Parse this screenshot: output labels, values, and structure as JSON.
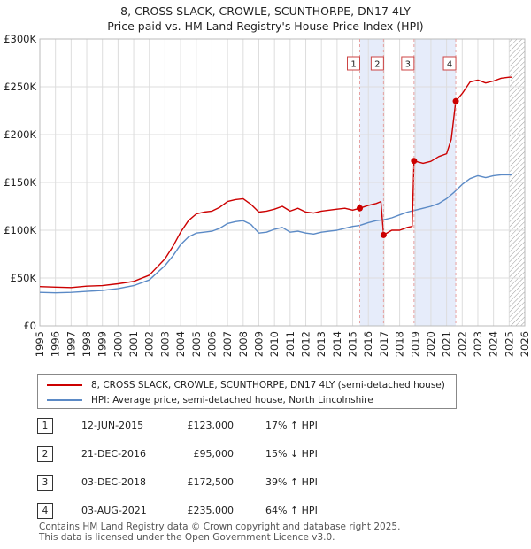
{
  "title_line1": "8, CROSS SLACK, CROWLE, SCUNTHORPE, DN17 4LY",
  "title_line2": "Price paid vs. HM Land Registry's House Price Index (HPI)",
  "colors": {
    "property_line": "#cc0000",
    "hpi_line": "#5b8ac6",
    "shade": "#e6ecfa",
    "marker_line": "#e6a0a0",
    "grid": "#dddddd",
    "hatch": "#999999"
  },
  "chart_data": {
    "type": "line",
    "title": "8, CROSS SLACK, CROWLE, SCUNTHORPE, DN17 4LY — Price paid vs. HM Land Registry's House Price Index (HPI)",
    "xlabel": "",
    "ylabel": "",
    "xlim": [
      1995,
      2026
    ],
    "ylim": [
      0,
      300000
    ],
    "grid": true,
    "x_ticks": [
      "1995",
      "1996",
      "1997",
      "1998",
      "1999",
      "2000",
      "2001",
      "2002",
      "2003",
      "2004",
      "2005",
      "2006",
      "2007",
      "2008",
      "2009",
      "2010",
      "2011",
      "2012",
      "2013",
      "2014",
      "2015",
      "2016",
      "2017",
      "2018",
      "2019",
      "2020",
      "2021",
      "2022",
      "2023",
      "2024",
      "2025",
      "2026"
    ],
    "y_ticks": [
      {
        "value": 0,
        "label": "£0"
      },
      {
        "value": 50000,
        "label": "£50K"
      },
      {
        "value": 100000,
        "label": "£100K"
      },
      {
        "value": 150000,
        "label": "£150K"
      },
      {
        "value": 200000,
        "label": "£200K"
      },
      {
        "value": 250000,
        "label": "£250K"
      },
      {
        "value": 300000,
        "label": "£300K"
      }
    ],
    "series": [
      {
        "name": "8, CROSS SLACK, CROWLE, SCUNTHORPE, DN17 4LY (semi-detached house)",
        "color": "#cc0000",
        "points": [
          [
            1995.0,
            41000
          ],
          [
            1996.0,
            40500
          ],
          [
            1997.0,
            40000
          ],
          [
            1998.0,
            41500
          ],
          [
            1999.0,
            42000
          ],
          [
            2000.0,
            44000
          ],
          [
            2001.0,
            46500
          ],
          [
            2002.0,
            53000
          ],
          [
            2003.0,
            70000
          ],
          [
            2003.5,
            83000
          ],
          [
            2004.0,
            98000
          ],
          [
            2004.5,
            110000
          ],
          [
            2005.0,
            117000
          ],
          [
            2005.5,
            119000
          ],
          [
            2006.0,
            120000
          ],
          [
            2006.5,
            124000
          ],
          [
            2007.0,
            130000
          ],
          [
            2007.5,
            132000
          ],
          [
            2008.0,
            133000
          ],
          [
            2008.5,
            127000
          ],
          [
            2009.0,
            119000
          ],
          [
            2009.5,
            120000
          ],
          [
            2010.0,
            122000
          ],
          [
            2010.5,
            125000
          ],
          [
            2011.0,
            120000
          ],
          [
            2011.5,
            123000
          ],
          [
            2012.0,
            119000
          ],
          [
            2012.5,
            118000
          ],
          [
            2013.0,
            120000
          ],
          [
            2013.5,
            121000
          ],
          [
            2014.0,
            122000
          ],
          [
            2014.5,
            123000
          ],
          [
            2015.0,
            121000
          ],
          [
            2015.45,
            123000
          ],
          [
            2016.0,
            126000
          ],
          [
            2016.5,
            128000
          ],
          [
            2016.8,
            130000
          ],
          [
            2016.97,
            95000
          ],
          [
            2017.5,
            100000
          ],
          [
            2018.0,
            100000
          ],
          [
            2018.5,
            103000
          ],
          [
            2018.8,
            104000
          ],
          [
            2018.92,
            172500
          ],
          [
            2019.5,
            170000
          ],
          [
            2020.0,
            172000
          ],
          [
            2020.5,
            177000
          ],
          [
            2021.0,
            180000
          ],
          [
            2021.3,
            195000
          ],
          [
            2021.59,
            235000
          ],
          [
            2022.0,
            243000
          ],
          [
            2022.5,
            255000
          ],
          [
            2023.0,
            257000
          ],
          [
            2023.5,
            254000
          ],
          [
            2024.0,
            256000
          ],
          [
            2024.5,
            259000
          ],
          [
            2025.0,
            260000
          ],
          [
            2025.2,
            260000
          ]
        ]
      },
      {
        "name": "HPI: Average price, semi-detached house, North Lincolnshire",
        "color": "#5b8ac6",
        "points": [
          [
            1995.0,
            35000
          ],
          [
            1996.0,
            34500
          ],
          [
            1997.0,
            35000
          ],
          [
            1998.0,
            36000
          ],
          [
            1999.0,
            37000
          ],
          [
            2000.0,
            39000
          ],
          [
            2001.0,
            42000
          ],
          [
            2002.0,
            48000
          ],
          [
            2003.0,
            63000
          ],
          [
            2003.5,
            73000
          ],
          [
            2004.0,
            85000
          ],
          [
            2004.5,
            93000
          ],
          [
            2005.0,
            97000
          ],
          [
            2005.5,
            98000
          ],
          [
            2006.0,
            99000
          ],
          [
            2006.5,
            102000
          ],
          [
            2007.0,
            107000
          ],
          [
            2007.5,
            109000
          ],
          [
            2008.0,
            110000
          ],
          [
            2008.5,
            106000
          ],
          [
            2009.0,
            97000
          ],
          [
            2009.5,
            98000
          ],
          [
            2010.0,
            101000
          ],
          [
            2010.5,
            103000
          ],
          [
            2011.0,
            98000
          ],
          [
            2011.5,
            99000
          ],
          [
            2012.0,
            97000
          ],
          [
            2012.5,
            96000
          ],
          [
            2013.0,
            98000
          ],
          [
            2013.5,
            99000
          ],
          [
            2014.0,
            100000
          ],
          [
            2014.5,
            102000
          ],
          [
            2015.0,
            104000
          ],
          [
            2015.45,
            105000
          ],
          [
            2016.0,
            108000
          ],
          [
            2016.5,
            110000
          ],
          [
            2017.0,
            111000
          ],
          [
            2017.5,
            113000
          ],
          [
            2018.0,
            116000
          ],
          [
            2018.5,
            119000
          ],
          [
            2019.0,
            121000
          ],
          [
            2019.5,
            123000
          ],
          [
            2020.0,
            125000
          ],
          [
            2020.5,
            128000
          ],
          [
            2021.0,
            133000
          ],
          [
            2021.5,
            140000
          ],
          [
            2022.0,
            148000
          ],
          [
            2022.5,
            154000
          ],
          [
            2023.0,
            157000
          ],
          [
            2023.5,
            155000
          ],
          [
            2024.0,
            157000
          ],
          [
            2024.5,
            158000
          ],
          [
            2025.0,
            158000
          ],
          [
            2025.2,
            158000
          ]
        ]
      }
    ],
    "sales": [
      {
        "n": "1",
        "x": 2015.45,
        "price": 123000
      },
      {
        "n": "2",
        "x": 2016.97,
        "price": 95000
      },
      {
        "n": "3",
        "x": 2018.92,
        "price": 172500
      },
      {
        "n": "4",
        "x": 2021.59,
        "price": 235000
      }
    ],
    "shaded_spans": [
      [
        2015.45,
        2016.97
      ],
      [
        2018.92,
        2021.59
      ]
    ],
    "hatch_from": 2025.0
  },
  "legend": {
    "property": "8, CROSS SLACK, CROWLE, SCUNTHORPE, DN17 4LY (semi-detached house)",
    "hpi": "HPI: Average price, semi-detached house, North Lincolnshire"
  },
  "sales_table": [
    {
      "n": "1",
      "date": "12-JUN-2015",
      "price": "£123,000",
      "hpi": "17% ↑ HPI"
    },
    {
      "n": "2",
      "date": "21-DEC-2016",
      "price": "£95,000",
      "hpi": "15% ↓ HPI"
    },
    {
      "n": "3",
      "date": "03-DEC-2018",
      "price": "£172,500",
      "hpi": "39% ↑ HPI"
    },
    {
      "n": "4",
      "date": "03-AUG-2021",
      "price": "£235,000",
      "hpi": "64% ↑ HPI"
    }
  ],
  "footer": {
    "line1": "Contains HM Land Registry data © Crown copyright and database right 2025.",
    "line2": "This data is licensed under the Open Government Licence v3.0."
  }
}
